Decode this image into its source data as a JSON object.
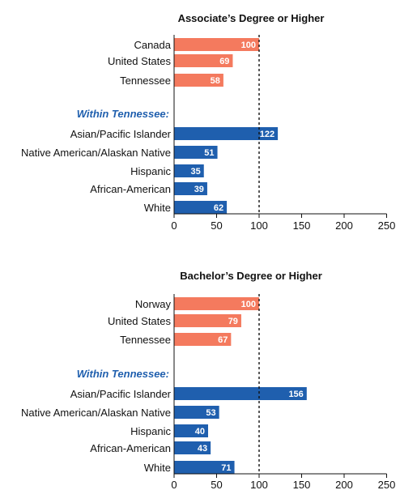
{
  "colors": {
    "benchmark": "#f47a5e",
    "within": "#1f5fae",
    "section": "#1f5fae",
    "axis": "#111111",
    "value_text": "#ffffff"
  },
  "chart_data": [
    {
      "type": "bar",
      "orientation": "horizontal",
      "title": "Associate’s Degree or Higher",
      "section_label": "Within Tennessee:",
      "categories": [
        "Canada",
        "United States",
        "Tennessee",
        "Asian/Pacific Islander",
        "Native American/Alaskan Native",
        "Hispanic",
        "African-American",
        "White"
      ],
      "values": [
        100,
        69,
        58,
        122,
        51,
        35,
        39,
        62
      ],
      "groups": [
        "benchmark",
        "benchmark",
        "benchmark",
        "within",
        "within",
        "within",
        "within",
        "within"
      ],
      "xlim": [
        0,
        250
      ],
      "xticks": [
        0,
        50,
        100,
        150,
        200,
        250
      ],
      "reference_line": 100,
      "grid": false
    },
    {
      "type": "bar",
      "orientation": "horizontal",
      "title": "Bachelor’s Degree or Higher",
      "section_label": "Within Tennessee:",
      "categories": [
        "Norway",
        "United States",
        "Tennessee",
        "Asian/Pacific Islander",
        "Native American/Alaskan Native",
        "Hispanic",
        "African-American",
        "White"
      ],
      "values": [
        100,
        79,
        67,
        156,
        53,
        40,
        43,
        71
      ],
      "groups": [
        "benchmark",
        "benchmark",
        "benchmark",
        "within",
        "within",
        "within",
        "within",
        "within"
      ],
      "xlim": [
        0,
        250
      ],
      "xticks": [
        0,
        50,
        100,
        150,
        200,
        250
      ],
      "reference_line": 100,
      "grid": false
    }
  ]
}
